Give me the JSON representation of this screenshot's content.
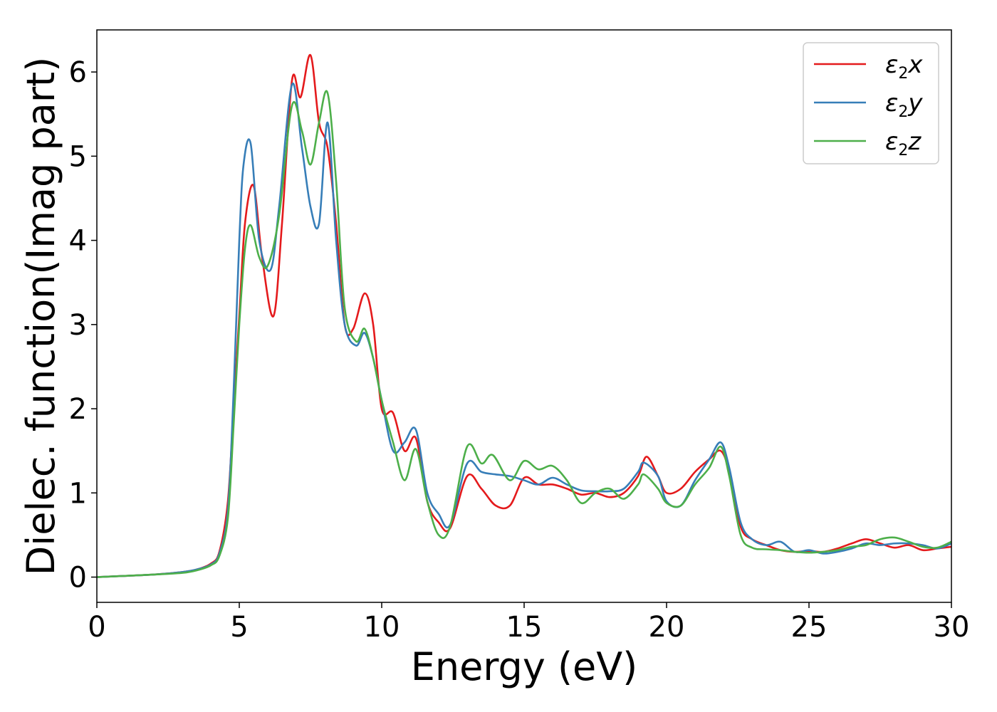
{
  "chart_data": {
    "type": "line",
    "xlabel": "Energy (eV)",
    "ylabel": "Dielec. function(Imag part)",
    "xlim": [
      0,
      30
    ],
    "ylim": [
      -0.3,
      6.5
    ],
    "xticks": [
      0,
      5,
      10,
      15,
      20,
      25,
      30
    ],
    "yticks": [
      0,
      1,
      2,
      3,
      4,
      5,
      6
    ],
    "grid": false,
    "legend_position": "top-right",
    "series": [
      {
        "name": "ε₂x",
        "legend_main": "ε",
        "legend_sub": "2",
        "legend_tail": "x",
        "color": "#e41a1c",
        "x": [
          0,
          2,
          3,
          3.5,
          4,
          4.3,
          4.6,
          4.8,
          5.0,
          5.2,
          5.5,
          5.8,
          6.2,
          6.5,
          6.85,
          7.15,
          7.5,
          7.8,
          8.1,
          8.4,
          8.7,
          9.0,
          9.4,
          9.7,
          10.0,
          10.4,
          10.8,
          11.2,
          11.6,
          12.0,
          12.4,
          13.0,
          13.5,
          14.0,
          14.5,
          15.0,
          15.5,
          16.0,
          16.5,
          17.0,
          17.5,
          18.0,
          18.5,
          19.0,
          19.3,
          19.7,
          20.0,
          20.5,
          21.0,
          21.5,
          21.9,
          22.2,
          22.6,
          23.0,
          23.5,
          24.0,
          24.5,
          25.0,
          25.5,
          26.0,
          26.5,
          27.0,
          27.5,
          28.0,
          28.5,
          29.0,
          29.5,
          30.0
        ],
        "y": [
          0.0,
          0.03,
          0.06,
          0.09,
          0.16,
          0.3,
          0.9,
          2.0,
          3.1,
          4.2,
          4.65,
          3.8,
          3.1,
          4.2,
          5.9,
          5.7,
          6.2,
          5.4,
          5.1,
          4.2,
          3.0,
          2.95,
          3.37,
          3.0,
          2.0,
          1.95,
          1.5,
          1.65,
          0.9,
          0.65,
          0.58,
          1.2,
          1.05,
          0.85,
          0.85,
          1.18,
          1.1,
          1.1,
          1.05,
          0.98,
          1.0,
          0.95,
          1.0,
          1.2,
          1.43,
          1.2,
          1.0,
          1.05,
          1.25,
          1.4,
          1.5,
          1.25,
          0.6,
          0.45,
          0.38,
          0.32,
          0.3,
          0.31,
          0.3,
          0.34,
          0.4,
          0.45,
          0.4,
          0.35,
          0.38,
          0.32,
          0.34,
          0.36
        ]
      },
      {
        "name": "ε₂y",
        "legend_main": "ε",
        "legend_sub": "2",
        "legend_tail": "y",
        "color": "#377eb8",
        "x": [
          0,
          2,
          3,
          3.5,
          4,
          4.3,
          4.6,
          4.8,
          5.0,
          5.15,
          5.4,
          5.7,
          6.1,
          6.4,
          6.85,
          7.2,
          7.5,
          7.8,
          8.1,
          8.4,
          8.7,
          9.1,
          9.4,
          9.7,
          10.0,
          10.4,
          10.8,
          11.2,
          11.6,
          12.0,
          12.4,
          13.0,
          13.5,
          14.0,
          14.5,
          15.0,
          15.5,
          16.0,
          16.5,
          17.0,
          17.5,
          18.0,
          18.5,
          19.0,
          19.2,
          19.7,
          20.0,
          20.5,
          21.0,
          21.5,
          21.9,
          22.2,
          22.6,
          23.0,
          23.5,
          24.0,
          24.5,
          25.0,
          25.5,
          26.0,
          26.5,
          27.0,
          27.5,
          28.0,
          28.5,
          29.0,
          29.5,
          30.0
        ],
        "y": [
          0.0,
          0.03,
          0.06,
          0.09,
          0.15,
          0.28,
          0.8,
          2.2,
          4.0,
          4.9,
          5.15,
          4.0,
          3.65,
          4.4,
          5.85,
          5.1,
          4.4,
          4.2,
          5.4,
          4.0,
          3.0,
          2.75,
          2.9,
          2.6,
          2.1,
          1.5,
          1.6,
          1.75,
          1.0,
          0.75,
          0.62,
          1.35,
          1.25,
          1.22,
          1.2,
          1.15,
          1.1,
          1.18,
          1.1,
          1.03,
          1.02,
          1.02,
          1.05,
          1.25,
          1.36,
          1.2,
          0.9,
          0.85,
          1.15,
          1.4,
          1.6,
          1.3,
          0.65,
          0.45,
          0.38,
          0.42,
          0.3,
          0.32,
          0.28,
          0.3,
          0.34,
          0.4,
          0.38,
          0.4,
          0.4,
          0.38,
          0.34,
          0.4
        ]
      },
      {
        "name": "ε₂z",
        "legend_main": "ε",
        "legend_sub": "2",
        "legend_tail": "z",
        "color": "#4daf4a",
        "x": [
          0,
          2,
          3,
          3.5,
          4,
          4.3,
          4.6,
          4.8,
          5.0,
          5.2,
          5.4,
          5.7,
          6.0,
          6.4,
          6.85,
          7.2,
          7.5,
          7.8,
          8.1,
          8.4,
          8.7,
          9.1,
          9.4,
          9.7,
          10.0,
          10.4,
          10.8,
          11.2,
          11.6,
          12.0,
          12.4,
          13.0,
          13.5,
          13.9,
          14.5,
          15.0,
          15.5,
          16.0,
          16.5,
          17.0,
          17.5,
          18.0,
          18.5,
          19.0,
          19.2,
          19.7,
          20.0,
          20.5,
          21.0,
          21.5,
          21.9,
          22.2,
          22.6,
          23.0,
          23.5,
          24.0,
          24.5,
          25.0,
          25.5,
          26.0,
          26.5,
          27.0,
          27.5,
          28.0,
          28.5,
          29.0,
          29.5,
          30.0
        ],
        "y": [
          0.0,
          0.03,
          0.05,
          0.08,
          0.14,
          0.25,
          0.7,
          1.8,
          3.0,
          3.9,
          4.18,
          3.8,
          3.7,
          4.3,
          5.6,
          5.3,
          4.9,
          5.4,
          5.75,
          4.7,
          3.2,
          2.8,
          2.95,
          2.6,
          2.1,
          1.6,
          1.15,
          1.52,
          0.9,
          0.5,
          0.6,
          1.55,
          1.35,
          1.45,
          1.15,
          1.38,
          1.28,
          1.32,
          1.15,
          0.88,
          1.0,
          1.05,
          0.93,
          1.1,
          1.22,
          1.05,
          0.88,
          0.85,
          1.1,
          1.3,
          1.55,
          1.2,
          0.5,
          0.35,
          0.33,
          0.32,
          0.3,
          0.29,
          0.3,
          0.32,
          0.36,
          0.38,
          0.45,
          0.47,
          0.42,
          0.36,
          0.35,
          0.42
        ]
      }
    ]
  }
}
